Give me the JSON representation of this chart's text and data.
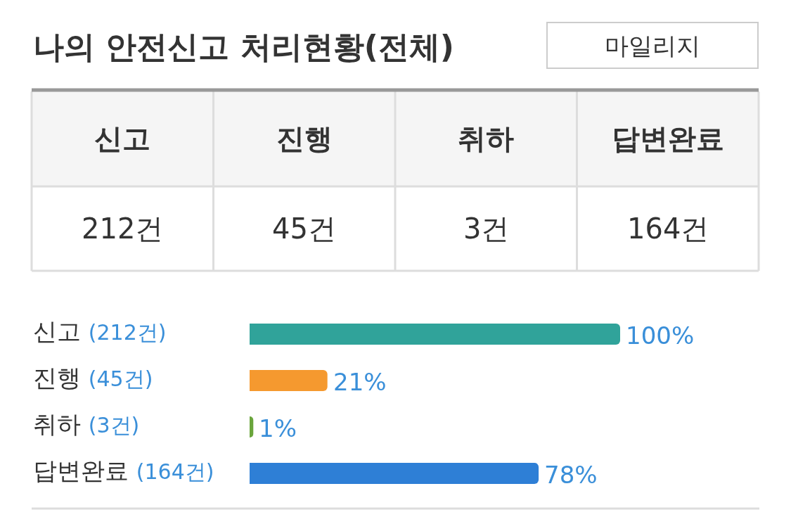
{
  "chart_data": [
    {
      "type": "other",
      "title": "나의 안전신고 처리현황(전체)",
      "annotations": [
        "마일리지"
      ],
      "categories": [
        "신고",
        "진행",
        "취하",
        "답변완료"
      ],
      "value_labels": [
        "212건",
        "45건",
        "3건",
        "164건"
      ]
    },
    {
      "type": "bar",
      "orientation": "horizontal",
      "categories": [
        "신고 (212건)",
        "진행 (45건)",
        "취하 (3건)",
        "답변완료 (164건)"
      ],
      "values": [
        100,
        21,
        1,
        78
      ],
      "colors": [
        "#30a39a",
        "#f5992f",
        "#6aa53c",
        "#2e7fd6"
      ],
      "value_labels": [
        "100%",
        "21%",
        "1%",
        "78%"
      ]
    }
  ]
}
